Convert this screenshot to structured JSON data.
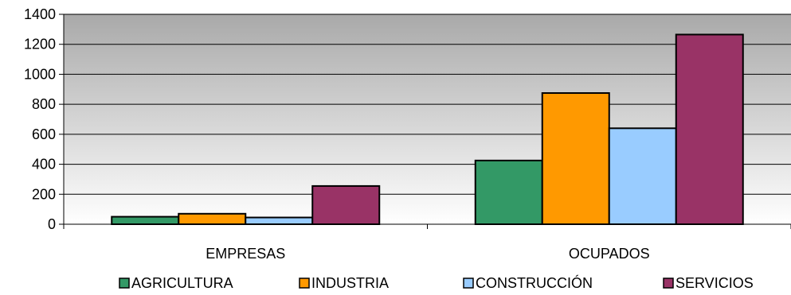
{
  "chart_data": {
    "type": "bar",
    "categories": [
      "EMPRESAS",
      "OCUPADOS"
    ],
    "series": [
      {
        "name": "AGRICULTURA",
        "values": [
          50,
          425
        ],
        "color": "#339966"
      },
      {
        "name": "INDUSTRIA",
        "values": [
          70,
          875
        ],
        "color": "#ff9900"
      },
      {
        "name": "CONSTRUCCIÓN",
        "values": [
          45,
          640
        ],
        "color": "#99ccff"
      },
      {
        "name": "SERVICIOS",
        "values": [
          255,
          1265
        ],
        "color": "#993366"
      }
    ],
    "ylim": [
      0,
      1400
    ],
    "yticks": [
      0,
      200,
      400,
      600,
      800,
      1000,
      1200,
      1400
    ],
    "grid": true,
    "legend_position": "bottom",
    "plot_background": "gradient-gray"
  }
}
